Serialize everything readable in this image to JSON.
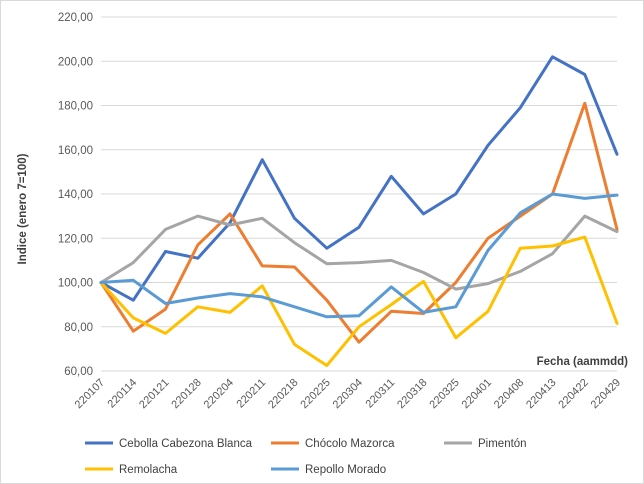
{
  "chart_data": {
    "type": "line",
    "title": "",
    "xlabel": "Fecha (aammdd)",
    "ylabel": "Indice (enero 7=100)",
    "ylim": [
      60,
      220
    ],
    "yticks": [
      60,
      80,
      100,
      120,
      140,
      160,
      180,
      200,
      220
    ],
    "ytick_labels": [
      "60,00",
      "80,00",
      "100,00",
      "120,00",
      "140,00",
      "160,00",
      "180,00",
      "200,00",
      "220,00"
    ],
    "grid": "horizontal",
    "legend_position": "bottom",
    "categories": [
      "220107",
      "220114",
      "220121",
      "220128",
      "220204",
      "220211",
      "220218",
      "220225",
      "220304",
      "220311",
      "220318",
      "220325",
      "220401",
      "220408",
      "220413",
      "220422",
      "220429"
    ],
    "series": [
      {
        "name": "Cebolla Cabezona Blanca",
        "color": "#4472c4",
        "values": [
          100,
          92,
          114,
          111,
          127,
          155.5,
          129,
          115.5,
          125,
          148,
          131,
          140,
          162,
          179,
          202,
          194,
          158
        ]
      },
      {
        "name": "Chócolo Mazorca",
        "color": "#ed7d31",
        "values": [
          100,
          78,
          88,
          117,
          131,
          107.5,
          107,
          92,
          73,
          87,
          86,
          100,
          120,
          130,
          140,
          181,
          124
        ]
      },
      {
        "name": "Pimentón",
        "color": "#a5a5a5",
        "values": [
          100,
          109,
          124,
          130,
          126,
          129,
          118,
          108.5,
          109,
          110,
          104.5,
          97,
          99.5,
          105,
          113,
          130,
          123
        ]
      },
      {
        "name": "Remolacha",
        "color": "#ffc000",
        "values": [
          100,
          84,
          77,
          89,
          86.5,
          98.5,
          72,
          62.5,
          80,
          90,
          100.5,
          75,
          87,
          115.5,
          116.5,
          120.5,
          81.5
        ]
      },
      {
        "name": "Repollo Morado",
        "color": "#5b9bd5",
        "values": [
          100,
          101,
          90.5,
          93,
          95,
          93.5,
          89,
          84.5,
          85,
          98,
          86.5,
          89,
          114.5,
          131.5,
          140,
          138,
          139.5
        ]
      }
    ]
  }
}
